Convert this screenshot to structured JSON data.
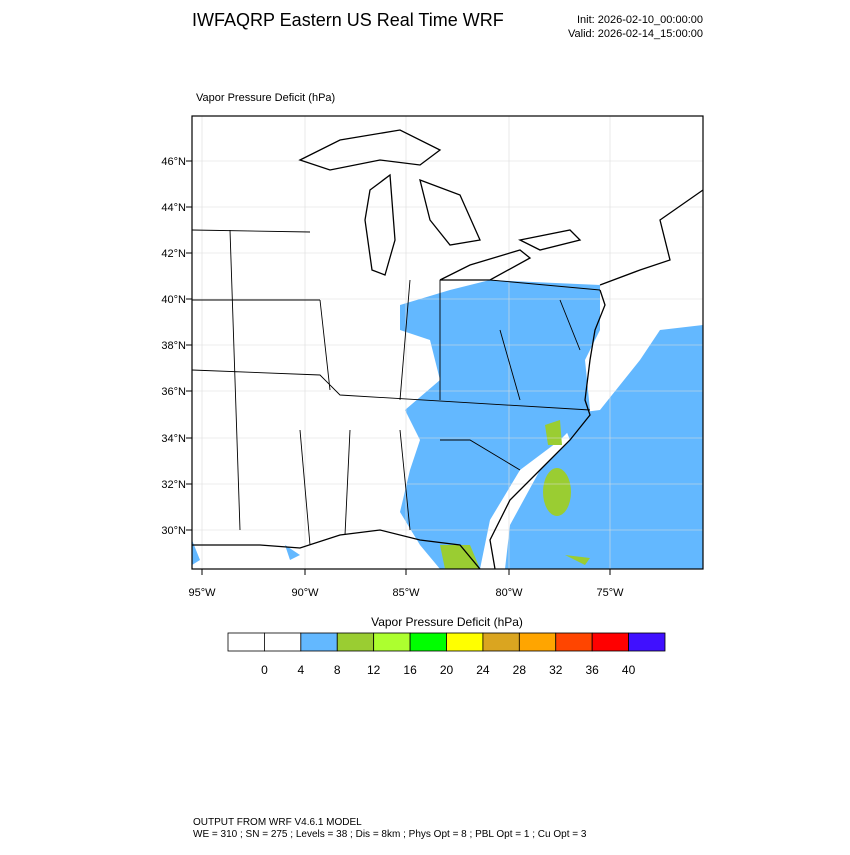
{
  "header": {
    "title": "IWFAQRP Eastern US Real Time WRF",
    "init": "Init: 2026-02-10_00:00:00",
    "valid": "Valid: 2026-02-14_15:00:00"
  },
  "map": {
    "title": "Vapor Pressure Deficit   (hPa)",
    "lat_labels": [
      "46°N",
      "44°N",
      "42°N",
      "40°N",
      "38°N",
      "36°N",
      "34°N",
      "32°N",
      "30°N"
    ],
    "lon_labels": [
      "95°W",
      "90°W",
      "85°W",
      "80°W",
      "75°W"
    ]
  },
  "colorbar": {
    "title": "Vapor Pressure Deficit  (hPa)",
    "levels": [
      0,
      4,
      8,
      12,
      16,
      20,
      24,
      28,
      32,
      36,
      40
    ],
    "colors": [
      "#ffffff",
      "#ffffff",
      "#63b8ff",
      "#9acd32",
      "#adff2f",
      "#00ff00",
      "#ffff00",
      "#daa520",
      "#ffa500",
      "#ff4500",
      "#ff0000",
      "#4010ff"
    ]
  },
  "footer": {
    "line1": "OUTPUT FROM WRF V4.6.1 MODEL",
    "line2": "WE = 310 ; SN = 275 ; Levels = 38 ; Dis = 8km ; Phys Opt = 8 ; PBL Opt = 1 ; Cu Opt = 3"
  }
}
